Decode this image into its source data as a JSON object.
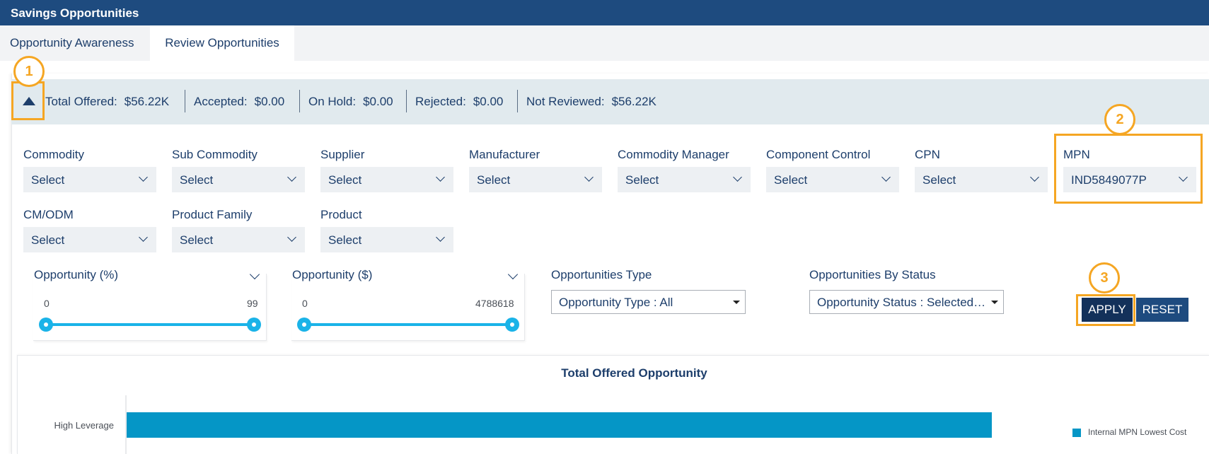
{
  "header": {
    "title": "Savings Opportunities"
  },
  "tabs": [
    {
      "label": "Opportunity Awareness"
    },
    {
      "label": "Review Opportunities",
      "active": true
    }
  ],
  "summary": {
    "total_offered": {
      "label": "Total Offered:",
      "value": "$56.22K"
    },
    "accepted": {
      "label": "Accepted:",
      "value": "$0.00"
    },
    "on_hold": {
      "label": "On Hold:",
      "value": "$0.00"
    },
    "rejected": {
      "label": "Rejected:",
      "value": "$0.00"
    },
    "not_reviewed": {
      "label": "Not Reviewed:",
      "value": "$56.22K"
    }
  },
  "annotations": [
    "1",
    "2",
    "3"
  ],
  "filters": [
    {
      "label": "Commodity",
      "value": "Select"
    },
    {
      "label": "Sub Commodity",
      "value": "Select"
    },
    {
      "label": "Supplier",
      "value": "Select"
    },
    {
      "label": "Manufacturer",
      "value": "Select"
    },
    {
      "label": "Commodity Manager",
      "value": "Select"
    },
    {
      "label": "Component Control",
      "value": "Select"
    },
    {
      "label": "CPN",
      "value": "Select"
    },
    {
      "label": "MPN",
      "value": "IND5849077P"
    },
    {
      "label": "CM/ODM",
      "value": "Select"
    },
    {
      "label": "Product Family",
      "value": "Select"
    },
    {
      "label": "Product",
      "value": "Select"
    }
  ],
  "sliders": [
    {
      "title": "Opportunity (%)",
      "min": "0",
      "max": "99"
    },
    {
      "title": "Opportunity ($)",
      "min": "0",
      "max": "4788618"
    }
  ],
  "dropdowns": {
    "type": {
      "label": "Opportunities Type",
      "value": "Opportunity Type : All"
    },
    "status": {
      "label": "Opportunities By Status",
      "value": "Opportunity Status : Selected…"
    }
  },
  "buttons": {
    "apply": "APPLY",
    "reset": "RESET"
  },
  "colors": {
    "header": "#1e4b7f",
    "accent": "#f5a623",
    "bar": "#0596c6",
    "slider": "#1ab3e8"
  },
  "chart_data": {
    "type": "bar",
    "orientation": "horizontal",
    "title": "Total Offered Opportunity",
    "categories": [
      "High Leverage"
    ],
    "series": [
      {
        "name": "Internal MPN Lowest Cost",
        "values": [
          56.22
        ]
      }
    ],
    "xlim": [
      0,
      58
    ],
    "legend": "right"
  }
}
